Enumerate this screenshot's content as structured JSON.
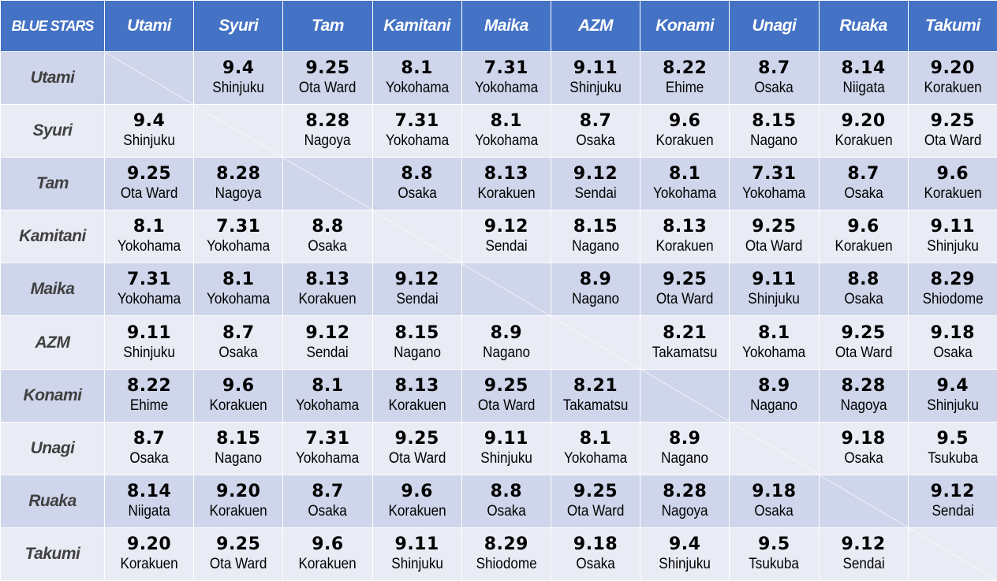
{
  "corner_label": "BLUE STARS",
  "headers": [
    "Utami",
    "Syuri",
    "Tam",
    "Kamitani",
    "Maika",
    "AZM",
    "Konami",
    "Unagi",
    "Ruaka",
    "Takumi"
  ],
  "rows": [
    {
      "name": "Utami",
      "cells": [
        null,
        {
          "date": "9.4",
          "venue": "Shinjuku"
        },
        {
          "date": "9.25",
          "venue": "Ota Ward"
        },
        {
          "date": "8.1",
          "venue": "Yokohama"
        },
        {
          "date": "7.31",
          "venue": "Yokohama"
        },
        {
          "date": "9.11",
          "venue": "Shinjuku"
        },
        {
          "date": "8.22",
          "venue": "Ehime"
        },
        {
          "date": "8.7",
          "venue": "Osaka"
        },
        {
          "date": "8.14",
          "venue": "Niigata"
        },
        {
          "date": "9.20",
          "venue": "Korakuen"
        }
      ]
    },
    {
      "name": "Syuri",
      "cells": [
        {
          "date": "9.4",
          "venue": "Shinjuku"
        },
        null,
        {
          "date": "8.28",
          "venue": "Nagoya"
        },
        {
          "date": "7.31",
          "venue": "Yokohama"
        },
        {
          "date": "8.1",
          "venue": "Yokohama"
        },
        {
          "date": "8.7",
          "venue": "Osaka"
        },
        {
          "date": "9.6",
          "venue": "Korakuen"
        },
        {
          "date": "8.15",
          "venue": "Nagano"
        },
        {
          "date": "9.20",
          "venue": "Korakuen"
        },
        {
          "date": "9.25",
          "venue": "Ota Ward"
        }
      ]
    },
    {
      "name": "Tam",
      "cells": [
        {
          "date": "9.25",
          "venue": "Ota Ward"
        },
        {
          "date": "8.28",
          "venue": "Nagoya"
        },
        null,
        {
          "date": "8.8",
          "venue": "Osaka"
        },
        {
          "date": "8.13",
          "venue": "Korakuen"
        },
        {
          "date": "9.12",
          "venue": "Sendai"
        },
        {
          "date": "8.1",
          "venue": "Yokohama"
        },
        {
          "date": "7.31",
          "venue": "Yokohama"
        },
        {
          "date": "8.7",
          "venue": "Osaka"
        },
        {
          "date": "9.6",
          "venue": "Korakuen"
        }
      ]
    },
    {
      "name": "Kamitani",
      "cells": [
        {
          "date": "8.1",
          "venue": "Yokohama"
        },
        {
          "date": "7.31",
          "venue": "Yokohama"
        },
        {
          "date": "8.8",
          "venue": "Osaka"
        },
        null,
        {
          "date": "9.12",
          "venue": "Sendai"
        },
        {
          "date": "8.15",
          "venue": "Nagano"
        },
        {
          "date": "8.13",
          "venue": "Korakuen"
        },
        {
          "date": "9.25",
          "venue": "Ota Ward"
        },
        {
          "date": "9.6",
          "venue": "Korakuen"
        },
        {
          "date": "9.11",
          "venue": "Shinjuku"
        }
      ]
    },
    {
      "name": "Maika",
      "cells": [
        {
          "date": "7.31",
          "venue": "Yokohama"
        },
        {
          "date": "8.1",
          "venue": "Yokohama"
        },
        {
          "date": "8.13",
          "venue": "Korakuen"
        },
        {
          "date": "9.12",
          "venue": "Sendai"
        },
        null,
        {
          "date": "8.9",
          "venue": "Nagano"
        },
        {
          "date": "9.25",
          "venue": "Ota Ward"
        },
        {
          "date": "9.11",
          "venue": "Shinjuku"
        },
        {
          "date": "8.8",
          "venue": "Osaka"
        },
        {
          "date": "8.29",
          "venue": "Shiodome"
        }
      ]
    },
    {
      "name": "AZM",
      "cells": [
        {
          "date": "9.11",
          "venue": "Shinjuku"
        },
        {
          "date": "8.7",
          "venue": "Osaka"
        },
        {
          "date": "9.12",
          "venue": "Sendai"
        },
        {
          "date": "8.15",
          "venue": "Nagano"
        },
        {
          "date": "8.9",
          "venue": "Nagano"
        },
        null,
        {
          "date": "8.21",
          "venue": "Takamatsu"
        },
        {
          "date": "8.1",
          "venue": "Yokohama"
        },
        {
          "date": "9.25",
          "venue": "Ota Ward"
        },
        {
          "date": "9.18",
          "venue": "Osaka"
        }
      ]
    },
    {
      "name": "Konami",
      "cells": [
        {
          "date": "8.22",
          "venue": "Ehime"
        },
        {
          "date": "9.6",
          "venue": "Korakuen"
        },
        {
          "date": "8.1",
          "venue": "Yokohama"
        },
        {
          "date": "8.13",
          "venue": "Korakuen"
        },
        {
          "date": "9.25",
          "venue": "Ota Ward"
        },
        {
          "date": "8.21",
          "venue": "Takamatsu"
        },
        null,
        {
          "date": "8.9",
          "venue": "Nagano"
        },
        {
          "date": "8.28",
          "venue": "Nagoya"
        },
        {
          "date": "9.4",
          "venue": "Shinjuku"
        }
      ]
    },
    {
      "name": "Unagi",
      "cells": [
        {
          "date": "8.7",
          "venue": "Osaka"
        },
        {
          "date": "8.15",
          "venue": "Nagano"
        },
        {
          "date": "7.31",
          "venue": "Yokohama"
        },
        {
          "date": "9.25",
          "venue": "Ota Ward"
        },
        {
          "date": "9.11",
          "venue": "Shinjuku"
        },
        {
          "date": "8.1",
          "venue": "Yokohama"
        },
        {
          "date": "8.9",
          "venue": "Nagano"
        },
        null,
        {
          "date": "9.18",
          "venue": "Osaka"
        },
        {
          "date": "9.5",
          "venue": "Tsukuba"
        }
      ]
    },
    {
      "name": "Ruaka",
      "cells": [
        {
          "date": "8.14",
          "venue": "Niigata"
        },
        {
          "date": "9.20",
          "venue": "Korakuen"
        },
        {
          "date": "8.7",
          "venue": "Osaka"
        },
        {
          "date": "9.6",
          "venue": "Korakuen"
        },
        {
          "date": "8.8",
          "venue": "Osaka"
        },
        {
          "date": "9.25",
          "venue": "Ota Ward"
        },
        {
          "date": "8.28",
          "venue": "Nagoya"
        },
        {
          "date": "9.18",
          "venue": "Osaka"
        },
        null,
        {
          "date": "9.12",
          "venue": "Sendai"
        }
      ]
    },
    {
      "name": "Takumi",
      "cells": [
        {
          "date": "9.20",
          "venue": "Korakuen"
        },
        {
          "date": "9.25",
          "venue": "Ota Ward"
        },
        {
          "date": "9.6",
          "venue": "Korakuen"
        },
        {
          "date": "9.11",
          "venue": "Shinjuku"
        },
        {
          "date": "8.29",
          "venue": "Shiodome"
        },
        {
          "date": "9.18",
          "venue": "Osaka"
        },
        {
          "date": "9.4",
          "venue": "Shinjuku"
        },
        {
          "date": "9.5",
          "venue": "Tsukuba"
        },
        {
          "date": "9.12",
          "venue": "Sendai"
        },
        null
      ]
    }
  ],
  "colors": {
    "header_bg": "#4472c4",
    "row_dark": "#cfd5ea",
    "row_light": "#e9ebf5",
    "row_label_text": "#404040",
    "cell_text": "#000000"
  }
}
